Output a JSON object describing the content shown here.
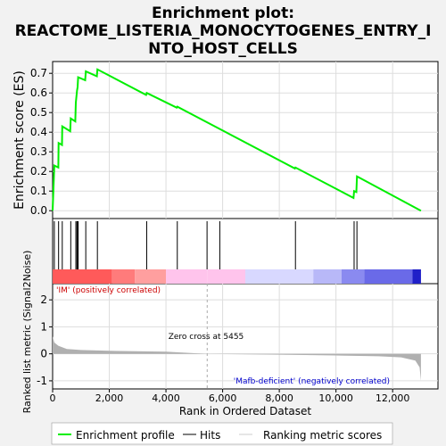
{
  "title_line1": "Enrichment plot:",
  "title_line2": "REACTOME_LISTERIA_MONOCYTOGENES_ENTRY_I",
  "title_line3": "NTO_HOST_CELLS",
  "es_ylabel": "Enrichment score (ES)",
  "rank_ylabel": "Ranked list metric (Signal2Noise)",
  "xlabel": "Rank in Ordered Dataset",
  "pos_label": "'IM' (positively correlated)",
  "neg_label": "'Mafb-deficient' (negatively correlated)",
  "zero_cross_label": "Zero cross at 5455",
  "legend": {
    "enrichment": "Enrichment profile",
    "hits": "Hits",
    "ranking": "Ranking metric scores"
  },
  "colors": {
    "enrichment_line": "#00ee00",
    "hits": "#000000",
    "pos_label": "#cc0000",
    "neg_label": "#0000cc",
    "metric_fill": "#b0b0b0"
  },
  "chart_data": {
    "type": "line",
    "x_range": [
      0,
      13600
    ],
    "x_ticks": [
      0,
      2000,
      4000,
      6000,
      8000,
      10000,
      12000
    ],
    "x_tick_labels": [
      "0",
      "2,000",
      "4,000",
      "6,000",
      "8,000",
      "10,000",
      "12,000"
    ],
    "es_ylim": [
      -0.04,
      0.76
    ],
    "es_ticks": [
      0.0,
      0.1,
      0.2,
      0.3,
      0.4,
      0.5,
      0.6,
      0.7
    ],
    "es_tick_labels": [
      "0.0",
      "0.1",
      "0.2",
      "0.3",
      "0.4",
      "0.5",
      "0.6",
      "0.7"
    ],
    "enrichment_profile": [
      [
        0,
        0.0
      ],
      [
        60,
        0.23
      ],
      [
        200,
        0.22
      ],
      [
        210,
        0.345
      ],
      [
        330,
        0.335
      ],
      [
        340,
        0.43
      ],
      [
        620,
        0.405
      ],
      [
        640,
        0.47
      ],
      [
        800,
        0.455
      ],
      [
        820,
        0.55
      ],
      [
        860,
        0.61
      ],
      [
        880,
        0.63
      ],
      [
        900,
        0.68
      ],
      [
        1150,
        0.665
      ],
      [
        1170,
        0.71
      ],
      [
        1560,
        0.685
      ],
      [
        1580,
        0.72
      ],
      [
        3300,
        0.59
      ],
      [
        3320,
        0.6
      ],
      [
        4380,
        0.525
      ],
      [
        4400,
        0.53
      ],
      [
        8550,
        0.215
      ],
      [
        8570,
        0.22
      ],
      [
        10620,
        0.065
      ],
      [
        10640,
        0.1
      ],
      [
        10720,
        0.095
      ],
      [
        10740,
        0.175
      ],
      [
        13000,
        0.0
      ]
    ],
    "hits": [
      60,
      210,
      340,
      640,
      820,
      860,
      880,
      900,
      1170,
      1580,
      3320,
      4400,
      5450,
      5900,
      8570,
      10640,
      10740
    ],
    "metric_ylim": [
      -1.3,
      2.6
    ],
    "metric_ticks": [
      -1,
      0,
      1,
      2
    ],
    "metric_tick_labels": [
      "-1",
      "0",
      "1",
      "2"
    ],
    "metric_profile": [
      [
        0,
        0.65
      ],
      [
        60,
        0.42
      ],
      [
        200,
        0.3
      ],
      [
        500,
        0.18
      ],
      [
        1000,
        0.14
      ],
      [
        2000,
        0.11
      ],
      [
        4000,
        0.08
      ],
      [
        5455,
        0.0
      ],
      [
        8000,
        -0.03
      ],
      [
        10000,
        -0.06
      ],
      [
        11500,
        -0.09
      ],
      [
        12300,
        -0.13
      ],
      [
        12800,
        -0.25
      ],
      [
        12950,
        -0.5
      ],
      [
        13000,
        -1.0
      ]
    ],
    "zero_cross": 5455,
    "heatmap_bands": [
      {
        "from": 0,
        "to": 2100,
        "color": "#ff5a5a"
      },
      {
        "from": 2100,
        "to": 2900,
        "color": "#ff7b7b"
      },
      {
        "from": 2900,
        "to": 4000,
        "color": "#ff9f9f"
      },
      {
        "from": 4000,
        "to": 5455,
        "color": "#ffc4ec"
      },
      {
        "from": 5455,
        "to": 6800,
        "color": "#ffc4ec"
      },
      {
        "from": 6800,
        "to": 9200,
        "color": "#d8d8ff"
      },
      {
        "from": 9200,
        "to": 10200,
        "color": "#b8b8f8"
      },
      {
        "from": 10200,
        "to": 11000,
        "color": "#8a8af0"
      },
      {
        "from": 11000,
        "to": 12700,
        "color": "#6a6ae8"
      },
      {
        "from": 12700,
        "to": 13000,
        "color": "#2020c8"
      }
    ]
  }
}
